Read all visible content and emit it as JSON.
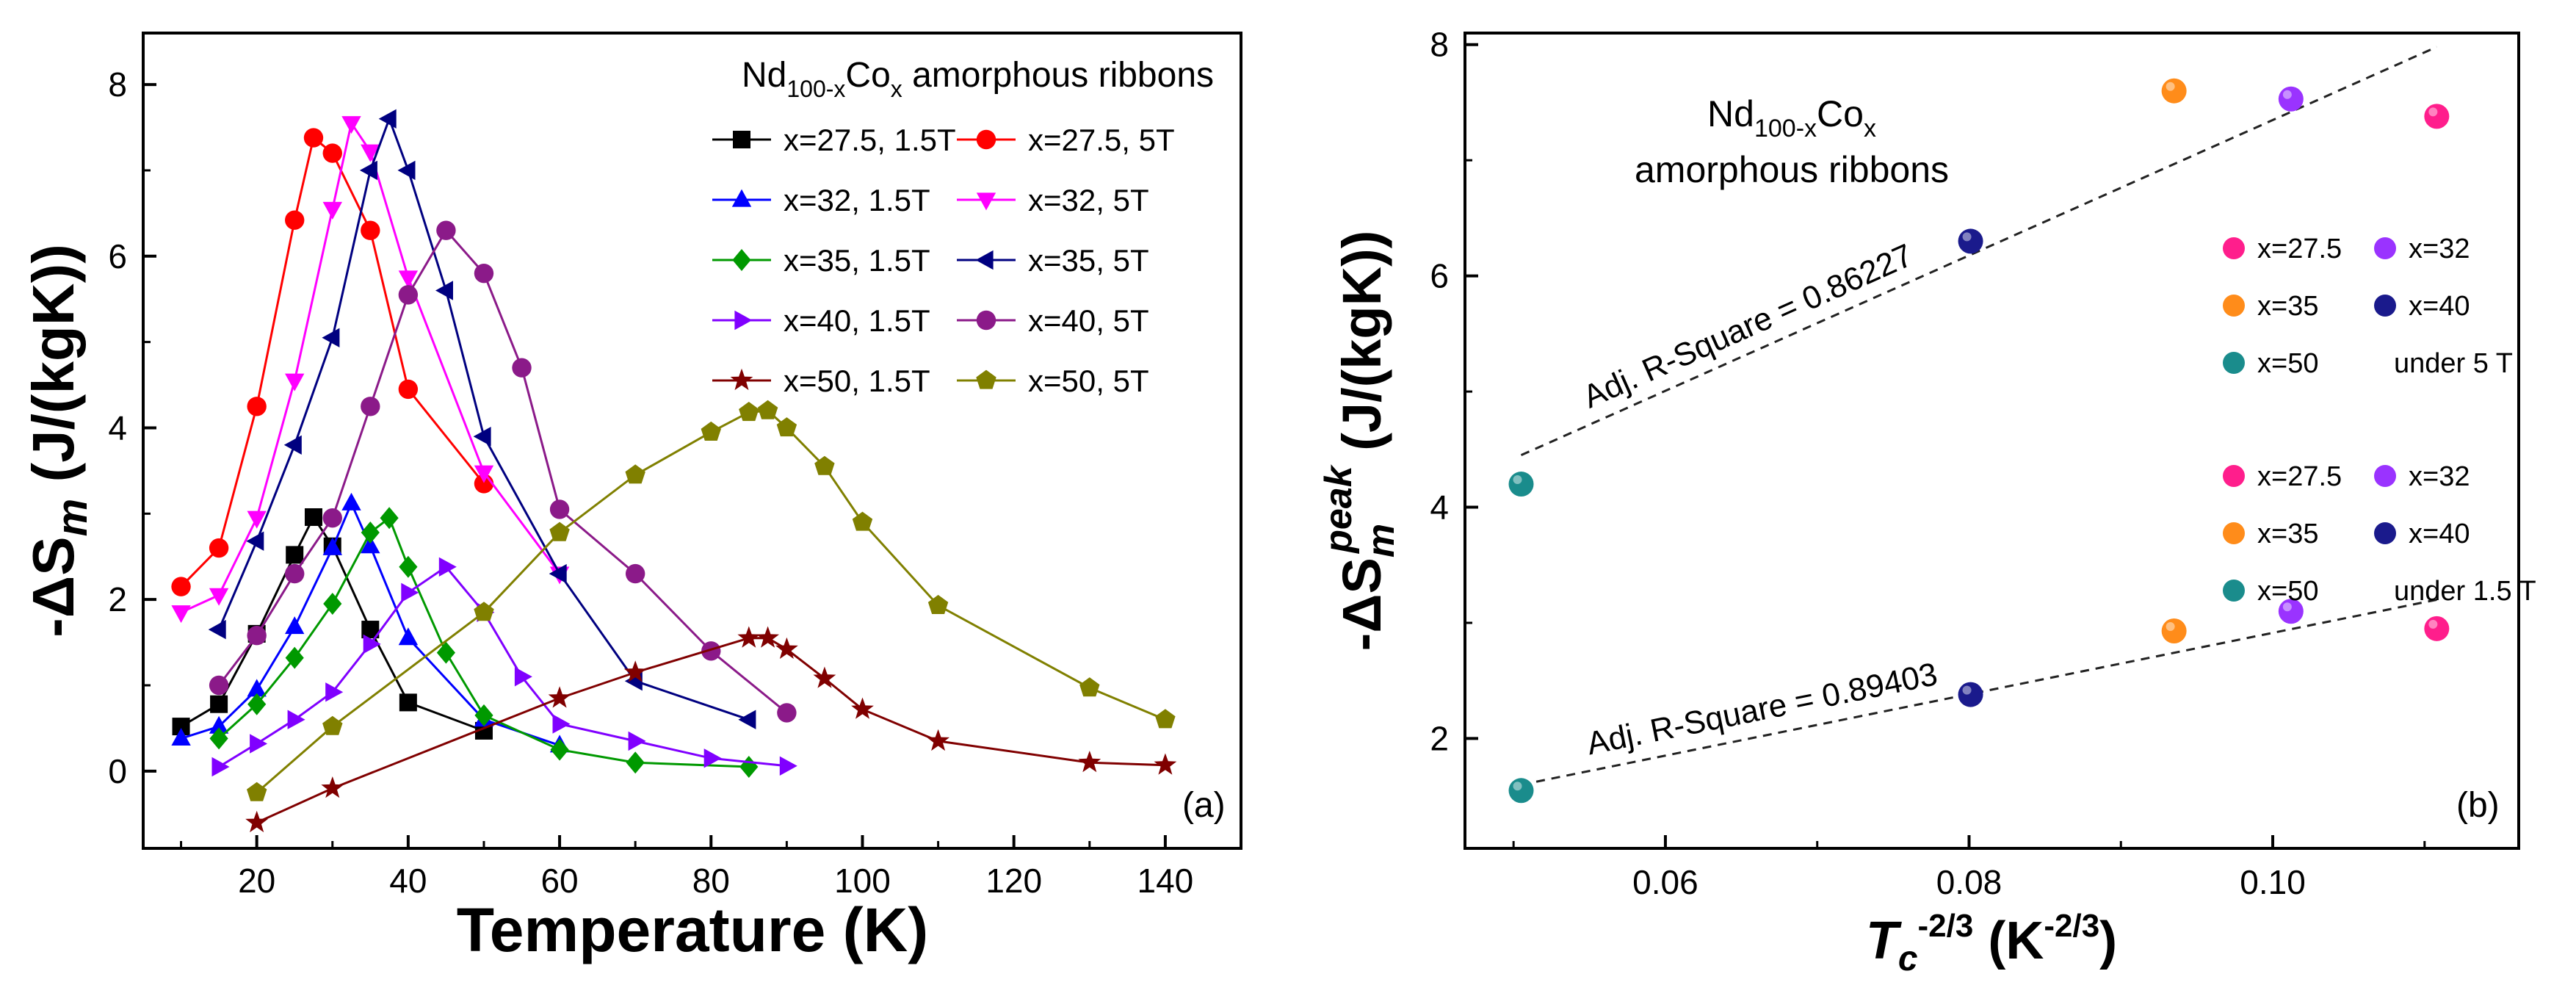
{
  "chart_data": [
    {
      "panel_label": "(a)",
      "type": "line",
      "xlabel": "Temperature (K)",
      "ylabel": {
        "prefix": "-ΔS",
        "sub": "m",
        "unit": " (J/(kgK))"
      },
      "xlim": [
        5,
        150
      ],
      "ylim": [
        -0.9,
        8.6
      ],
      "xticks": [
        "20",
        "40",
        "60",
        "80",
        "100",
        "120",
        "140"
      ],
      "yticks": [
        "0",
        "2",
        "4",
        "6",
        "8"
      ],
      "legend_title": {
        "base1": "Nd",
        "sub1": "100-x",
        "base2": "Co",
        "sub2": "x",
        "rest": " amorphous ribbons"
      },
      "series": [
        {
          "name": "x=27.5, 1.5T",
          "color": "#000000",
          "marker": "square",
          "x": [
            10,
            15,
            20,
            25,
            27.5,
            30,
            35,
            40,
            50
          ],
          "y": [
            0.52,
            0.78,
            1.6,
            2.52,
            2.96,
            2.62,
            1.65,
            0.8,
            0.47
          ]
        },
        {
          "name": "x=27.5, 5T",
          "color": "#ff0000",
          "marker": "circle",
          "x": [
            10,
            15,
            20,
            25,
            27.5,
            30,
            35,
            40,
            50
          ],
          "y": [
            2.15,
            2.6,
            4.25,
            6.42,
            7.38,
            7.2,
            6.3,
            4.45,
            3.35
          ]
        },
        {
          "name": "x=32, 1.5T",
          "color": "#0000ff",
          "marker": "triangle-up",
          "x": [
            10,
            15,
            20,
            25,
            30,
            32.5,
            35,
            40,
            50,
            60
          ],
          "y": [
            0.38,
            0.52,
            0.95,
            1.68,
            2.6,
            3.12,
            2.62,
            1.55,
            0.6,
            0.3
          ]
        },
        {
          "name": "x=32, 5T",
          "color": "#ff00ff",
          "marker": "triangle-down",
          "x": [
            10,
            15,
            20,
            25,
            30,
            32.5,
            35,
            40,
            50,
            60
          ],
          "y": [
            1.85,
            2.05,
            2.95,
            4.55,
            6.55,
            7.55,
            7.22,
            5.75,
            3.48,
            2.3
          ]
        },
        {
          "name": "x=35, 1.5T",
          "color": "#009900",
          "marker": "diamond",
          "x": [
            15,
            20,
            25,
            30,
            35,
            37.5,
            40,
            45,
            50,
            60,
            70,
            85
          ],
          "y": [
            0.38,
            0.78,
            1.32,
            1.95,
            2.78,
            2.95,
            2.38,
            1.38,
            0.65,
            0.25,
            0.1,
            0.05
          ]
        },
        {
          "name": "x=35, 5T",
          "color": "#000080",
          "marker": "triangle-left",
          "x": [
            15,
            20,
            25,
            30,
            35,
            37.5,
            40,
            45,
            50,
            60,
            70,
            85
          ],
          "y": [
            1.65,
            2.68,
            3.8,
            5.05,
            7.0,
            7.6,
            7.0,
            5.6,
            3.9,
            2.3,
            1.05,
            0.6
          ]
        },
        {
          "name": "x=40, 1.5T",
          "color": "#8000ff",
          "marker": "triangle-right",
          "x": [
            15,
            20,
            25,
            30,
            35,
            40,
            45,
            50,
            55,
            60,
            70,
            80,
            90
          ],
          "y": [
            0.05,
            0.32,
            0.6,
            0.92,
            1.48,
            2.08,
            2.38,
            1.85,
            1.1,
            0.55,
            0.35,
            0.15,
            0.06
          ]
        },
        {
          "name": "x=40, 5T",
          "color": "#8b1a89",
          "marker": "circle",
          "x": [
            15,
            20,
            25,
            30,
            35,
            40,
            45,
            50,
            55,
            60,
            70,
            80,
            90
          ],
          "y": [
            1.0,
            1.58,
            2.3,
            2.95,
            4.25,
            5.55,
            6.3,
            5.8,
            4.7,
            3.05,
            2.3,
            1.4,
            0.68
          ]
        },
        {
          "name": "x=50, 1.5T",
          "color": "#800000",
          "marker": "star",
          "x": [
            20,
            30,
            60,
            70,
            85,
            87.5,
            90,
            95,
            100,
            110,
            130,
            140
          ],
          "y": [
            -0.6,
            -0.2,
            0.85,
            1.15,
            1.55,
            1.55,
            1.42,
            1.08,
            0.72,
            0.35,
            0.1,
            0.07
          ]
        },
        {
          "name": "x=50, 5T",
          "color": "#808000",
          "marker": "pentagon",
          "x": [
            20,
            30,
            50,
            60,
            70,
            80,
            85,
            87.5,
            90,
            95,
            100,
            110,
            130,
            140
          ],
          "y": [
            -0.25,
            0.52,
            1.85,
            2.78,
            3.45,
            3.95,
            4.18,
            4.2,
            4.0,
            3.55,
            2.9,
            1.93,
            0.97,
            0.6
          ]
        }
      ]
    },
    {
      "panel_label": "(b)",
      "type": "scatter",
      "xlabel": {
        "base": "T",
        "sub": "c",
        "sup": "-2/3",
        "unit": " (K",
        "unit_sup": "-2/3",
        "close": ")"
      },
      "ylabel": {
        "prefix": "-ΔS",
        "sub": "m",
        "sup": "peak",
        "unit": " (J/(kgK))"
      },
      "xlim": [
        0.0468,
        0.1162
      ],
      "ylim": [
        1.05,
        8.1
      ],
      "xticks": [
        "0.06",
        "0.08",
        "0.10"
      ],
      "yticks": [
        "2",
        "4",
        "6",
        "8"
      ],
      "annotation_title": {
        "base1": "Nd",
        "sub1": "100-x",
        "base2": "Co",
        "sub2": "x",
        "line2": "amorphous ribbons"
      },
      "series": [
        {
          "name": "x=27.5",
          "color": "#ff1e8c",
          "points": [
            [
              0.1108,
              7.38
            ],
            [
              0.1108,
              2.95
            ]
          ]
        },
        {
          "name": "x=32",
          "color": "#9a33ff",
          "points": [
            [
              0.1012,
              7.53
            ],
            [
              0.1012,
              3.1
            ]
          ]
        },
        {
          "name": "x=35",
          "color": "#ff8c1a",
          "points": [
            [
              0.0935,
              7.6
            ],
            [
              0.0935,
              2.93
            ]
          ]
        },
        {
          "name": "x=40",
          "color": "#1a1a8c",
          "points": [
            [
              0.0801,
              6.3
            ],
            [
              0.0801,
              2.38
            ]
          ]
        },
        {
          "name": "x=50",
          "color": "#1a8c8c",
          "points": [
            [
              0.0505,
              4.2
            ],
            [
              0.0505,
              1.55
            ]
          ]
        }
      ],
      "legend_groups": [
        {
          "items": [
            "x=27.5",
            "x=32",
            "x=35",
            "x=40",
            "x=50"
          ],
          "suffix": "under 5 T"
        },
        {
          "items": [
            "x=27.5",
            "x=32",
            "x=35",
            "x=40",
            "x=50"
          ],
          "suffix": "under 1.5 T"
        }
      ],
      "fits": [
        {
          "label": "Adj. R-Square = 0.86227",
          "x": [
            0.0505,
            0.1108
          ],
          "y": [
            4.45,
            7.98
          ]
        },
        {
          "label": "Adj. R-Square = 0.89403",
          "x": [
            0.0505,
            0.1108
          ],
          "y": [
            1.6,
            3.2
          ]
        }
      ]
    }
  ]
}
